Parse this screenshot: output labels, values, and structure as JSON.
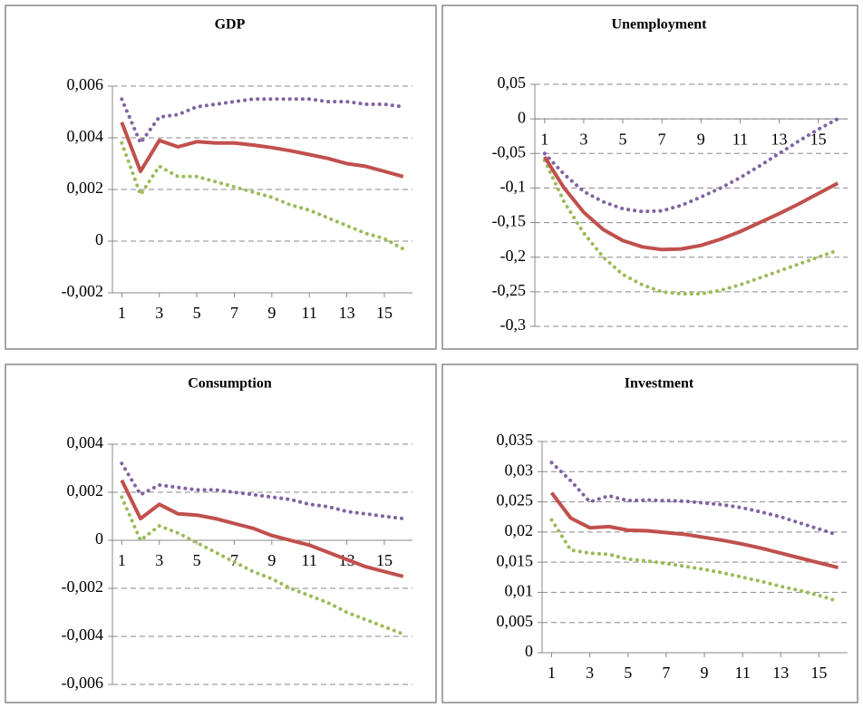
{
  "chart_data": [
    {
      "type": "line",
      "title": "GDP",
      "x": [
        1,
        2,
        3,
        4,
        5,
        6,
        7,
        8,
        9,
        10,
        11,
        12,
        13,
        14,
        15,
        16
      ],
      "xlim": [
        0.5,
        16.5
      ],
      "xticks": [
        1,
        3,
        5,
        7,
        9,
        11,
        13,
        15
      ],
      "ylim": [
        -0.002,
        0.006
      ],
      "yticks": [
        {
          "value": -0.002,
          "label": "-0,002"
        },
        0,
        {
          "value": 0.002,
          "label": "0,002"
        },
        {
          "value": 0.004,
          "label": "0,004"
        },
        {
          "value": 0.006,
          "label": "0,006"
        }
      ],
      "grid": true,
      "x_axis_at": "bottom",
      "series": [
        {
          "color": "#8064a2",
          "dash": "dotted",
          "values": [
            0.0055,
            0.0038,
            0.0048,
            0.0049,
            0.0052,
            0.0053,
            0.0054,
            0.0055,
            0.0055,
            0.0055,
            0.0055,
            0.0054,
            0.0054,
            0.0053,
            0.0053,
            0.0052
          ]
        },
        {
          "color": "#9bbb59",
          "dash": "dotted",
          "values": [
            0.0038,
            0.0018,
            0.0029,
            0.0025,
            0.0025,
            0.0023,
            0.0021,
            0.0019,
            0.0017,
            0.0014,
            0.0012,
            0.0009,
            0.0006,
            0.0003,
            0.0001,
            -0.0003
          ]
        },
        {
          "color": "#c0504d",
          "dash": "solid",
          "values": [
            0.0046,
            0.0027,
            0.0039,
            0.00365,
            0.00385,
            0.0038,
            0.0038,
            0.00372,
            0.00362,
            0.0035,
            0.00335,
            0.0032,
            0.003,
            0.0029,
            0.0027,
            0.0025
          ]
        }
      ]
    },
    {
      "type": "line",
      "title": "Unemployment",
      "x": [
        1,
        2,
        3,
        4,
        5,
        6,
        7,
        8,
        9,
        10,
        11,
        12,
        13,
        14,
        15,
        16
      ],
      "xlim": [
        0.5,
        16.5
      ],
      "xticks": [
        1,
        3,
        5,
        7,
        9,
        11,
        13,
        15
      ],
      "ylim": [
        -0.3,
        0.05
      ],
      "yticks": [
        {
          "value": -0.3,
          "label": "-0,3"
        },
        {
          "value": -0.25,
          "label": "-0,25"
        },
        {
          "value": -0.2,
          "label": "-0,2"
        },
        {
          "value": -0.15,
          "label": "-0,15"
        },
        {
          "value": -0.1,
          "label": "-0,1"
        },
        {
          "value": -0.05,
          "label": "-0,05"
        },
        0,
        {
          "value": 0.05,
          "label": "0,05"
        }
      ],
      "grid": true,
      "x_axis_at": "zero",
      "series": [
        {
          "color": "#8064a2",
          "dash": "dotted",
          "values": [
            -0.05,
            -0.08,
            -0.105,
            -0.12,
            -0.13,
            -0.134,
            -0.133,
            -0.125,
            -0.113,
            -0.1,
            -0.085,
            -0.068,
            -0.05,
            -0.032,
            -0.015,
            0
          ]
        },
        {
          "color": "#9bbb59",
          "dash": "dotted",
          "values": [
            -0.06,
            -0.12,
            -0.165,
            -0.2,
            -0.225,
            -0.24,
            -0.25,
            -0.253,
            -0.253,
            -0.248,
            -0.24,
            -0.23,
            -0.22,
            -0.21,
            -0.2,
            -0.19
          ]
        },
        {
          "color": "#c0504d",
          "dash": "solid",
          "values": [
            -0.055,
            -0.1,
            -0.135,
            -0.16,
            -0.176,
            -0.185,
            -0.189,
            -0.188,
            -0.183,
            -0.174,
            -0.163,
            -0.15,
            -0.137,
            -0.123,
            -0.108,
            -0.093
          ]
        }
      ]
    },
    {
      "type": "line",
      "title": "Consumption",
      "x": [
        1,
        2,
        3,
        4,
        5,
        6,
        7,
        8,
        9,
        10,
        11,
        12,
        13,
        14,
        15,
        16
      ],
      "xlim": [
        0.5,
        16.5
      ],
      "xticks": [
        1,
        3,
        5,
        7,
        9,
        11,
        13,
        15
      ],
      "ylim": [
        -0.006,
        0.004
      ],
      "yticks": [
        {
          "value": -0.006,
          "label": "-0,006"
        },
        {
          "value": -0.004,
          "label": "-0,004"
        },
        {
          "value": -0.002,
          "label": "-0,002"
        },
        0,
        {
          "value": 0.002,
          "label": "0,002"
        },
        {
          "value": 0.004,
          "label": "0,004"
        }
      ],
      "grid": true,
      "x_axis_at": "zero",
      "series": [
        {
          "color": "#8064a2",
          "dash": "dotted",
          "values": [
            0.0032,
            0.0019,
            0.0023,
            0.0022,
            0.0021,
            0.0021,
            0.002,
            0.0019,
            0.0018,
            0.0017,
            0.0015,
            0.0014,
            0.0012,
            0.0011,
            0.001,
            0.0009
          ]
        },
        {
          "color": "#9bbb59",
          "dash": "dotted",
          "values": [
            0.0018,
            0,
            0.0006,
            0.0003,
            -0.0001,
            -0.0005,
            -0.0009,
            -0.0013,
            -0.0016,
            -0.002,
            -0.0023,
            -0.0026,
            -0.003,
            -0.0033,
            -0.0036,
            -0.0039
          ]
        },
        {
          "color": "#c0504d",
          "dash": "solid",
          "values": [
            0.0025,
            0.0009,
            0.0015,
            0.0011,
            0.00105,
            0.0009,
            0.0007,
            0.0005,
            0.0002,
            0,
            -0.0002,
            -0.0005,
            -0.0008,
            -0.0011,
            -0.0013,
            -0.0015
          ]
        }
      ]
    },
    {
      "type": "line",
      "title": "Investment",
      "x": [
        1,
        2,
        3,
        4,
        5,
        6,
        7,
        8,
        9,
        10,
        11,
        12,
        13,
        14,
        15,
        16
      ],
      "xlim": [
        0.5,
        16.5
      ],
      "xticks": [
        1,
        3,
        5,
        7,
        9,
        11,
        13,
        15
      ],
      "ylim": [
        0,
        0.035
      ],
      "yticks": [
        0,
        {
          "value": 0.005,
          "label": "0,005"
        },
        {
          "value": 0.01,
          "label": "0,01"
        },
        {
          "value": 0.015,
          "label": "0,015"
        },
        {
          "value": 0.02,
          "label": "0,02"
        },
        {
          "value": 0.025,
          "label": "0,025"
        },
        {
          "value": 0.03,
          "label": "0,03"
        },
        {
          "value": 0.035,
          "label": "0,035"
        }
      ],
      "grid": true,
      "x_axis_at": "zero",
      "series": [
        {
          "color": "#8064a2",
          "dash": "dotted",
          "values": [
            0.0315,
            0.0285,
            0.025,
            0.026,
            0.0252,
            0.0253,
            0.0252,
            0.0251,
            0.0248,
            0.0245,
            0.024,
            0.0233,
            0.0225,
            0.0215,
            0.0205,
            0.0195
          ]
        },
        {
          "color": "#9bbb59",
          "dash": "dotted",
          "values": [
            0.022,
            0.017,
            0.0165,
            0.0163,
            0.0155,
            0.0152,
            0.0148,
            0.0143,
            0.0138,
            0.0132,
            0.0125,
            0.0118,
            0.011,
            0.0103,
            0.0095,
            0.0085
          ]
        },
        {
          "color": "#c0504d",
          "dash": "solid",
          "values": [
            0.0265,
            0.0223,
            0.0207,
            0.0209,
            0.0203,
            0.0202,
            0.0199,
            0.0196,
            0.0191,
            0.0186,
            0.018,
            0.0173,
            0.0165,
            0.0157,
            0.0149,
            0.0141
          ]
        }
      ]
    }
  ]
}
